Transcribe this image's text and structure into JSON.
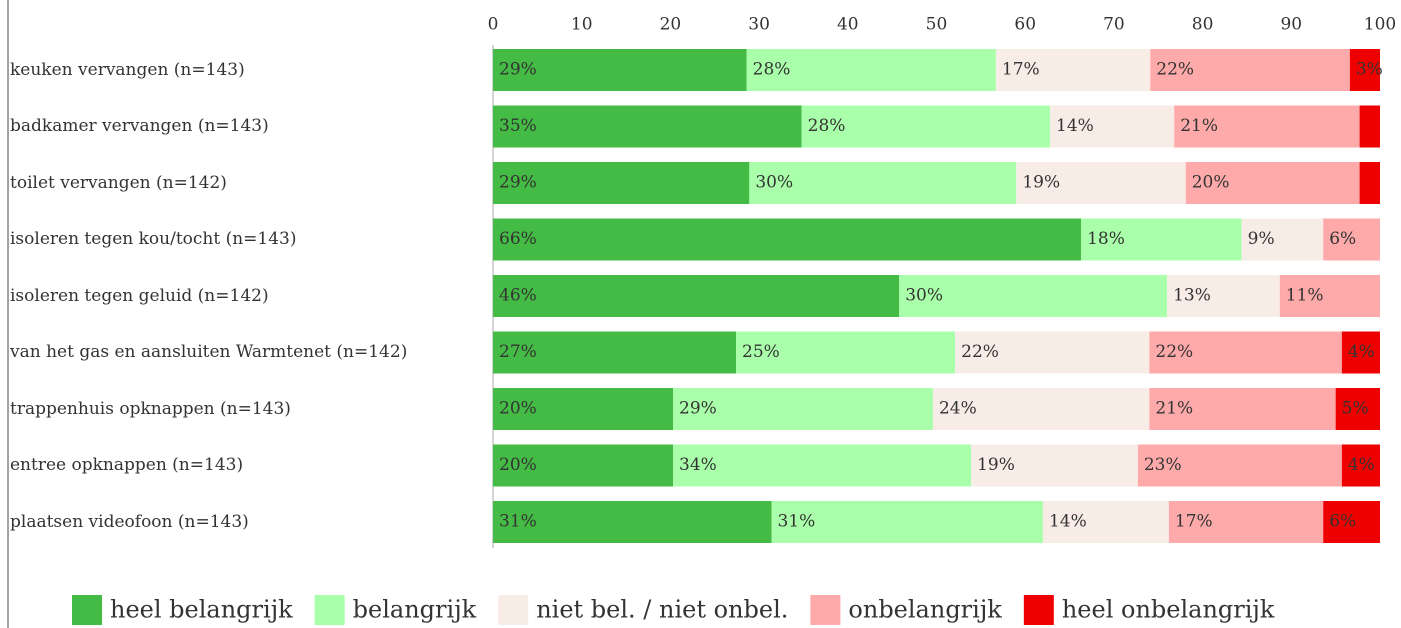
{
  "chart_data": {
    "type": "stacked-bar-horizontal",
    "categories": [
      "keuken vervangen (n=143)",
      "badkamer vervangen (n=143)",
      "toilet vervangen (n=142)",
      "isoleren tegen kou/tocht (n=143)",
      "isoleren tegen geluid (n=142)",
      "van het gas en aansluiten Warmtenet (n=142)",
      "trappenhuis opknappen (n=143)",
      "entree opknappen (n=143)",
      "plaatsen videofoon (n=143)"
    ],
    "series": [
      {
        "name": "heel belangrijk",
        "color": "#44bb44",
        "values": [
          28.6,
          34.8,
          28.9,
          66.3,
          45.8,
          27.4,
          20.3,
          20.3,
          31.4
        ],
        "value_labels": [
          "29%",
          "35%",
          "29%",
          "66%",
          "46%",
          "27%",
          "20%",
          "20%",
          "31%"
        ]
      },
      {
        "name": "belangrijk",
        "color": "#aaffaa",
        "values": [
          28.1,
          28.0,
          30.1,
          18.1,
          30.2,
          24.7,
          29.3,
          33.6,
          30.6
        ],
        "value_labels": [
          "28%",
          "28%",
          "30%",
          "18%",
          "30%",
          "25%",
          "29%",
          "34%",
          "31%"
        ]
      },
      {
        "name": "niet bel. / niet onbel.",
        "color": "#f8ece6",
        "values": [
          17.4,
          14.0,
          19.1,
          9.2,
          12.7,
          21.9,
          24.4,
          18.8,
          14.2
        ],
        "value_labels": [
          "17%",
          "14%",
          "19%",
          "9%",
          "13%",
          "22%",
          "24%",
          "19%",
          "14%"
        ]
      },
      {
        "name": "onbelangrijk",
        "color": "#ffaaaa",
        "values": [
          22.5,
          20.9,
          19.6,
          6.4,
          11.3,
          21.7,
          21.0,
          23.0,
          17.4
        ],
        "value_labels": [
          "22%",
          "21%",
          "20%",
          "6%",
          "11%",
          "22%",
          "21%",
          "23%",
          "17%"
        ]
      },
      {
        "name": "heel onbelangrijk",
        "color": "#ee0000",
        "values": [
          3.4,
          2.3,
          2.3,
          0,
          0,
          4.3,
          5.0,
          4.3,
          6.4
        ],
        "value_labels": [
          "3%",
          null,
          null,
          null,
          null,
          "4%",
          "5%",
          "4%",
          "6%"
        ]
      }
    ],
    "xlim": [
      0,
      100
    ],
    "xticks": [
      0,
      10,
      20,
      30,
      40,
      50,
      60,
      70,
      80,
      90,
      100
    ],
    "legend": "bottom"
  }
}
